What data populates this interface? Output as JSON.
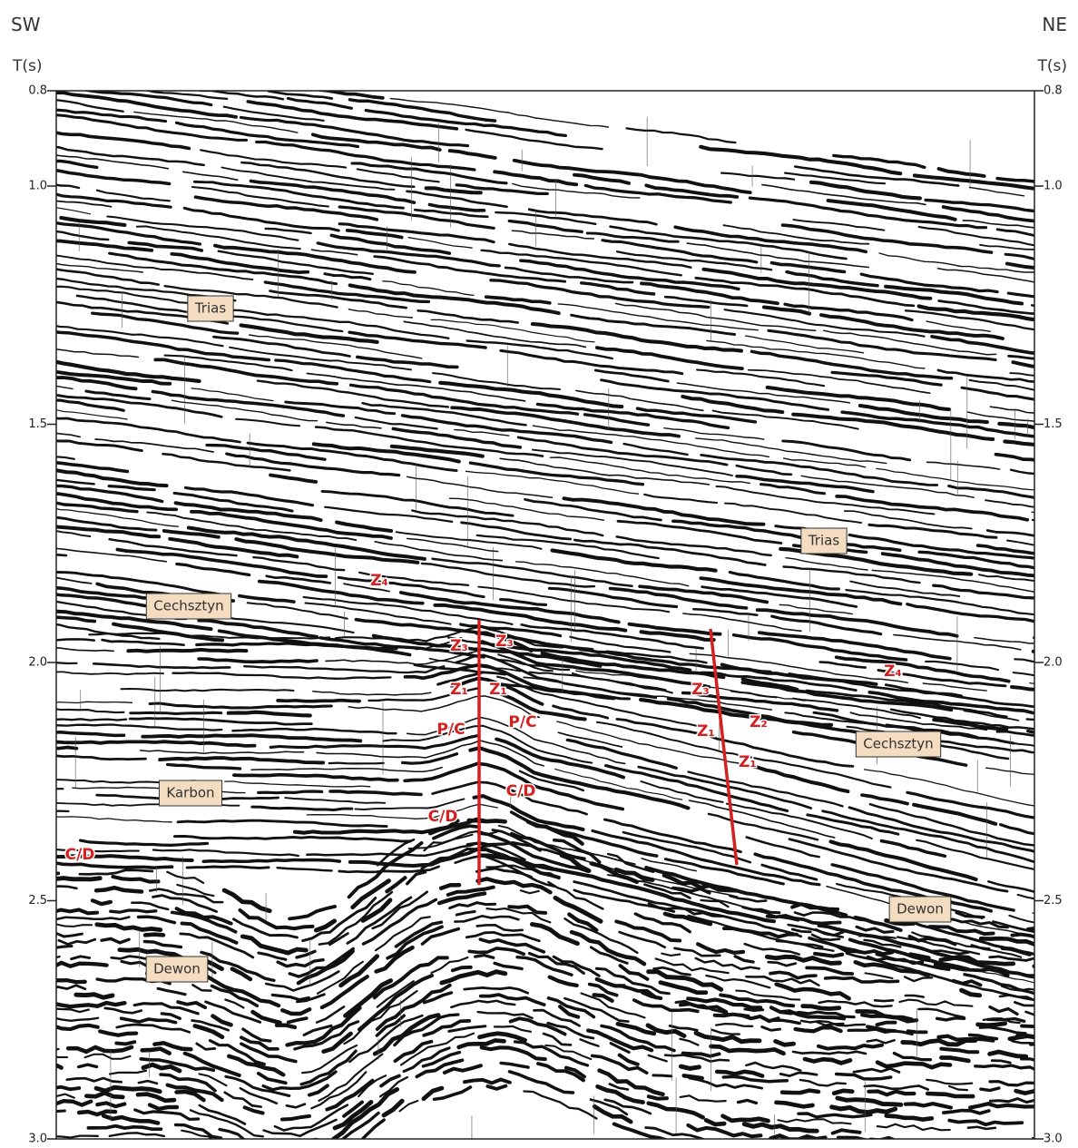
{
  "header": {
    "left": "SW",
    "right": "NE"
  },
  "axis": {
    "label_left": "T(s)",
    "label_right": "T(s)",
    "ticks": [
      {
        "value": 0.8,
        "label": "0.8"
      },
      {
        "value": 1,
        "label": "1.0"
      },
      1.5,
      {
        "value": 2,
        "label": "2.0"
      },
      2.5,
      {
        "value": 3,
        "label": "3.0"
      }
    ]
  },
  "formations": [
    "Trias",
    "Trias",
    "Cechsztyn",
    "Cechsztyn",
    "Karbon",
    "Dewon",
    "Dewon"
  ],
  "markers": [
    "Z₄",
    "Z₃",
    "Z₃",
    "Z₁",
    "Z₁",
    "P/C",
    "P/C",
    "C/D",
    "C/D",
    "C/D",
    "Z₃",
    "Z₂",
    "Z₁",
    "Z₁",
    "Z₄"
  ]
}
